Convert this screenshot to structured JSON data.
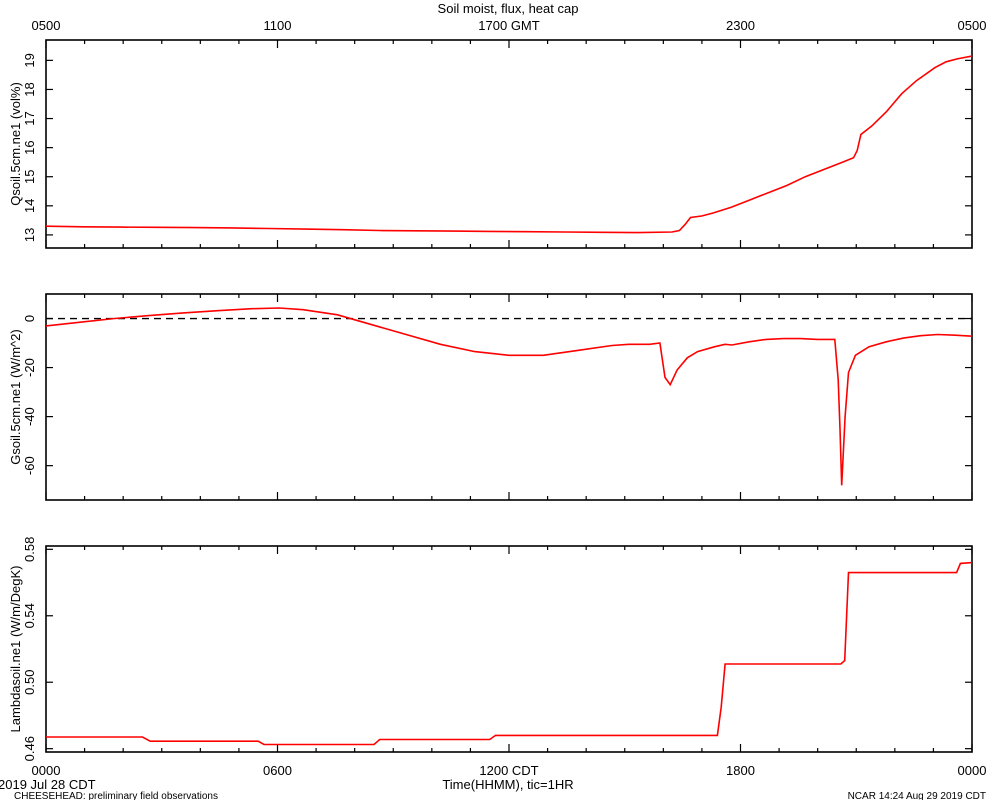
{
  "chart_data": {
    "type": "line",
    "title": "Soil moist, flux, heat cap",
    "top_axis": {
      "unit_label": "GMT",
      "tick_labels": [
        "0500",
        "1100",
        "1700 GMT",
        "2300",
        "0500"
      ]
    },
    "bottom_axis": {
      "tick_labels": [
        "0000",
        "0600",
        "1200 CDT",
        "1800",
        "0000"
      ],
      "xlabel": "Time(HHMM), tic=1HR",
      "start_date": "2019 Jul 28 CDT"
    },
    "x_hours_range": [
      0,
      24
    ],
    "footer": {
      "left": "CHEESEHEAD: preliminary field observations",
      "right": "NCAR 14:24 Aug 29 2019 CDT"
    },
    "panels": [
      {
        "ylabel": "Qsoil.5cm.ne1 (vol%)",
        "ylim": [
          12.55,
          19.7
        ],
        "yticks": [
          13,
          14,
          15,
          16,
          17,
          18,
          19
        ],
        "ytick_labels": [
          "13",
          "14",
          "15",
          "16",
          "17",
          "18",
          "19"
        ],
        "zero_line": false,
        "series": [
          {
            "color": "#ff0000",
            "points": [
              [
                0,
                13.3
              ],
              [
                1,
                13.28
              ],
              [
                2,
                13.27
              ],
              [
                3,
                13.26
              ],
              [
                4,
                13.25
              ],
              [
                5,
                13.24
              ],
              [
                6,
                13.22
              ],
              [
                7,
                13.2
              ],
              [
                8,
                13.18
              ],
              [
                9,
                13.15
              ],
              [
                10,
                13.14
              ],
              [
                11,
                13.13
              ],
              [
                12,
                13.12
              ],
              [
                13,
                13.11
              ],
              [
                14,
                13.1
              ],
              [
                15,
                13.09
              ],
              [
                16,
                13.08
              ],
              [
                16.9,
                13.1
              ],
              [
                17.1,
                13.15
              ],
              [
                17.25,
                13.35
              ],
              [
                17.4,
                13.6
              ],
              [
                17.7,
                13.65
              ],
              [
                18,
                13.75
              ],
              [
                18.5,
                13.95
              ],
              [
                19,
                14.2
              ],
              [
                19.5,
                14.45
              ],
              [
                20,
                14.7
              ],
              [
                20.5,
                15.0
              ],
              [
                21,
                15.25
              ],
              [
                21.5,
                15.5
              ],
              [
                21.8,
                15.65
              ],
              [
                21.9,
                15.9
              ],
              [
                22.0,
                16.45
              ],
              [
                22.3,
                16.75
              ],
              [
                22.7,
                17.25
              ],
              [
                23.1,
                17.85
              ],
              [
                23.5,
                18.3
              ],
              [
                24,
                18.75
              ],
              [
                24.3,
                18.95
              ],
              [
                24.6,
                19.05
              ],
              [
                25,
                19.15
              ]
            ]
          }
        ]
      },
      {
        "ylabel": "Gsoil.5cm.ne1 (W/m^2)",
        "ylim": [
          -74,
          10
        ],
        "yticks": [
          0,
          -20,
          -40,
          -60
        ],
        "ytick_labels": [
          "0",
          "-20",
          "-40",
          "-60"
        ],
        "zero_line": true,
        "series": [
          {
            "color": "#ff0000",
            "points": [
              [
                0,
                -3
              ],
              [
                1,
                -1.5
              ],
              [
                2,
                0
              ],
              [
                3,
                1.2
              ],
              [
                4,
                2.3
              ],
              [
                5,
                3.2
              ],
              [
                6,
                4
              ],
              [
                6.8,
                4.3
              ],
              [
                7.5,
                3.6
              ],
              [
                8.5,
                1.5
              ],
              [
                9.5,
                -2.5
              ],
              [
                10.5,
                -6.5
              ],
              [
                11.5,
                -10.5
              ],
              [
                12.5,
                -13.5
              ],
              [
                13.5,
                -15
              ],
              [
                14.5,
                -15
              ],
              [
                15.5,
                -13
              ],
              [
                16.5,
                -11
              ],
              [
                17,
                -10.5
              ],
              [
                17.6,
                -10.5
              ],
              [
                17.9,
                -10
              ],
              [
                18.05,
                -24
              ],
              [
                18.2,
                -27
              ],
              [
                18.4,
                -21
              ],
              [
                18.7,
                -16
              ],
              [
                19,
                -13.5
              ],
              [
                19.5,
                -11.5
              ],
              [
                19.8,
                -10.5
              ],
              [
                20,
                -10.8
              ],
              [
                20.5,
                -9.5
              ],
              [
                21,
                -8.5
              ],
              [
                21.5,
                -8.2
              ],
              [
                22,
                -8.2
              ],
              [
                22.5,
                -8.5
              ],
              [
                23,
                -8.5
              ],
              [
                23.1,
                -25
              ],
              [
                23.15,
                -45
              ],
              [
                23.2,
                -68
              ],
              [
                23.3,
                -40
              ],
              [
                23.4,
                -22
              ],
              [
                23.6,
                -15
              ],
              [
                24,
                -11.5
              ],
              [
                24.5,
                -9.5
              ],
              [
                25,
                -8
              ],
              [
                25.5,
                -7
              ],
              [
                26,
                -6.5
              ],
              [
                26.5,
                -6.8
              ],
              [
                27,
                -7.2
              ]
            ]
          }
        ]
      },
      {
        "ylabel": "Lambdasoil.ne1 (W/m/DegK)",
        "ylim": [
          0.458,
          0.582
        ],
        "yticks": [
          0.46,
          0.5,
          0.54,
          0.58
        ],
        "ytick_labels": [
          "0.46",
          "0.50",
          "0.54",
          "0.58"
        ],
        "zero_line": false,
        "series": [
          {
            "color": "#ff0000",
            "points": [
              [
                0,
                0.467
              ],
              [
                2.5,
                0.467
              ],
              [
                2.7,
                0.4645
              ],
              [
                5.5,
                0.4645
              ],
              [
                5.65,
                0.4625
              ],
              [
                8.5,
                0.4625
              ],
              [
                8.65,
                0.4655
              ],
              [
                11.5,
                0.4655
              ],
              [
                11.65,
                0.468
              ],
              [
                17.4,
                0.468
              ],
              [
                17.5,
                0.485
              ],
              [
                17.6,
                0.511
              ],
              [
                20.6,
                0.511
              ],
              [
                20.7,
                0.513
              ],
              [
                20.8,
                0.566
              ],
              [
                23.6,
                0.566
              ],
              [
                23.7,
                0.5715
              ],
              [
                24,
                0.572
              ]
            ]
          }
        ]
      }
    ]
  }
}
